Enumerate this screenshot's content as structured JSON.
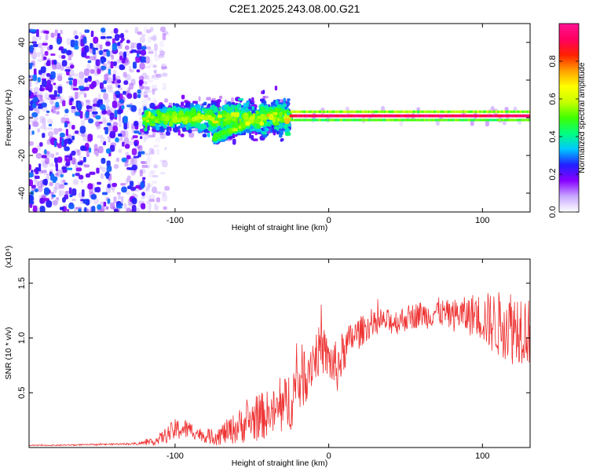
{
  "page_title": "C2E1.2025.243.08.00.G21",
  "chart_data": [
    {
      "type": "heatmap",
      "name": "spectrogram",
      "title": "C2E1.2025.243.08.00.G21",
      "xlabel": "Height of straight line (km)",
      "ylabel": "Frequency (Hz)",
      "xlim": [
        -195,
        131
      ],
      "ylim": [
        -50,
        50
      ],
      "xticks": [
        -100,
        0,
        100
      ],
      "yticks": [
        -40,
        -20,
        0,
        20,
        40
      ],
      "colorbar": {
        "label": "Normalized spectral amplitude",
        "range": [
          0,
          1
        ],
        "ticks": [
          0.0,
          0.2,
          0.4,
          0.6,
          0.8
        ],
        "tick_labels": [
          "0.0",
          "0.2",
          "0.4",
          "0.6",
          "0.8"
        ],
        "colormap": [
          "#ffffff",
          "#c8a8ff",
          "#8800ff",
          "#2020ff",
          "#00c8ff",
          "#00ff80",
          "#40ff00",
          "#c8ff00",
          "#ffff00",
          "#ffa000",
          "#ff2000",
          "#ff0060",
          "#ff1493"
        ]
      },
      "regions": [
        {
          "desc": "noise",
          "x": [
            -195,
            -120
          ],
          "y": [
            -50,
            47
          ],
          "amplitude": [
            0.05,
            0.3
          ]
        },
        {
          "desc": "sparse noise",
          "x": [
            -120,
            -105
          ],
          "y": [
            -50,
            47
          ],
          "amplitude": [
            0.02,
            0.12
          ]
        },
        {
          "desc": "broad signal",
          "x": [
            -120,
            -25
          ],
          "y_center": [
            0,
            0
          ],
          "y_spread": [
            6,
            10
          ],
          "amplitude": [
            0.2,
            0.5
          ]
        },
        {
          "desc": "diverging branch",
          "x": [
            -75,
            -30
          ],
          "y_center": [
            -11,
            5
          ],
          "y_spread": [
            3,
            3
          ],
          "amplitude": [
            0.25,
            0.45
          ]
        },
        {
          "desc": "narrow carrier",
          "x": [
            -25,
            131
          ],
          "y_center": [
            1,
            1
          ],
          "y_spread": [
            1.5,
            1.5
          ],
          "amplitude": [
            0.85,
            0.97
          ]
        }
      ]
    },
    {
      "type": "line",
      "name": "snr",
      "xlabel": "Height of straight line (km)",
      "ylabel": "SNR (10 * v/v)",
      "multiplier": "(x10⁴)",
      "xlim": [
        -195,
        131
      ],
      "ylim": [
        0,
        1.72
      ],
      "xticks": [
        -100,
        0,
        100
      ],
      "yticks": [
        0.5,
        1.0,
        1.5
      ],
      "ytick_labels": [
        "0.5",
        "1.0",
        "1.5"
      ],
      "color": "#ee3333",
      "x": [
        -195,
        -180,
        -160,
        -140,
        -125,
        -115,
        -110,
        -105,
        -100,
        -95,
        -90,
        -85,
        -80,
        -75,
        -70,
        -65,
        -60,
        -55,
        -50,
        -45,
        -40,
        -35,
        -30,
        -25,
        -20,
        -15,
        -10,
        -5,
        0,
        5,
        10,
        15,
        20,
        25,
        30,
        35,
        40,
        45,
        50,
        55,
        60,
        65,
        70,
        75,
        80,
        85,
        90,
        95,
        100,
        105,
        110,
        115,
        120,
        125,
        131
      ],
      "y_mean": [
        0.02,
        0.02,
        0.025,
        0.03,
        0.035,
        0.05,
        0.08,
        0.12,
        0.16,
        0.17,
        0.16,
        0.13,
        0.1,
        0.1,
        0.12,
        0.15,
        0.18,
        0.22,
        0.25,
        0.28,
        0.3,
        0.32,
        0.35,
        0.45,
        0.58,
        0.7,
        0.82,
        0.9,
        0.8,
        0.72,
        0.88,
        1.0,
        1.05,
        1.1,
        1.12,
        1.15,
        1.15,
        1.15,
        1.18,
        1.2,
        1.22,
        1.2,
        1.25,
        1.22,
        1.2,
        1.22,
        1.2,
        1.22,
        1.18,
        1.15,
        1.12,
        1.15,
        1.1,
        1.12,
        1.05
      ],
      "y_jitter": [
        0.005,
        0.005,
        0.006,
        0.008,
        0.01,
        0.03,
        0.05,
        0.08,
        0.1,
        0.1,
        0.08,
        0.06,
        0.06,
        0.08,
        0.1,
        0.12,
        0.15,
        0.18,
        0.2,
        0.22,
        0.22,
        0.22,
        0.25,
        0.3,
        0.3,
        0.3,
        0.25,
        0.22,
        0.2,
        0.25,
        0.2,
        0.15,
        0.15,
        0.12,
        0.12,
        0.1,
        0.12,
        0.12,
        0.12,
        0.12,
        0.12,
        0.12,
        0.13,
        0.13,
        0.15,
        0.15,
        0.18,
        0.2,
        0.22,
        0.28,
        0.3,
        0.35,
        0.35,
        0.35,
        0.3
      ]
    }
  ]
}
